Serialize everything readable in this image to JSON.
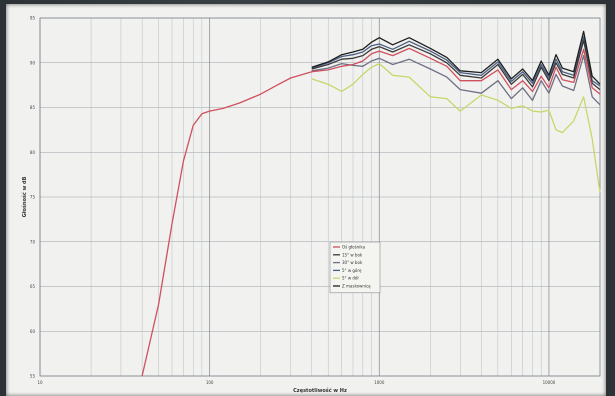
{
  "chart_data": {
    "type": "line",
    "title": "",
    "xlabel": "Częstotliwość w Hz",
    "ylabel": "Głośność w dB",
    "x_scale": "log",
    "xlim": [
      10,
      20000
    ],
    "ylim": [
      55,
      95
    ],
    "grid": true,
    "legend_position": "center-bottom",
    "x_tick_labels": [
      {
        "value": 10,
        "label": "10"
      },
      {
        "value": 100,
        "label": "100"
      },
      {
        "value": 1000,
        "label": "1000"
      },
      {
        "value": 10000,
        "label": "10000"
      }
    ],
    "y_ticks": [
      95,
      90,
      85,
      80,
      75,
      70,
      65,
      60,
      55
    ],
    "series": [
      {
        "name": "Oś głośnika",
        "color": "#d0505f",
        "x": [
          40,
          50,
          60,
          70,
          80,
          90,
          100,
          120,
          150,
          200,
          250,
          300,
          400,
          500,
          600,
          700,
          800,
          900,
          1000,
          1200,
          1500,
          2000,
          2500,
          3000,
          4000,
          5000,
          6000,
          7000,
          8000,
          9000,
          10000,
          11000,
          12000,
          14000,
          16000,
          18000,
          20000
        ],
        "y": [
          55,
          63,
          72,
          79,
          83,
          84.3,
          84.6,
          84.9,
          85.5,
          86.5,
          87.5,
          88.3,
          89,
          89.2,
          89.6,
          89.8,
          90.2,
          91,
          91.3,
          90.8,
          91.6,
          90.5,
          89.6,
          88,
          88,
          89.2,
          87,
          88,
          86.8,
          88.5,
          87.2,
          89.5,
          88.1,
          87.8,
          91.5,
          87.2,
          86.5
        ]
      },
      {
        "name": "15° w bok",
        "color": "#3a3a3a",
        "x": [
          400,
          500,
          600,
          700,
          800,
          900,
          1000,
          1200,
          1500,
          2000,
          2500,
          3000,
          4000,
          5000,
          6000,
          7000,
          8000,
          9000,
          10000,
          11000,
          12000,
          14000,
          16000,
          18000,
          20000
        ],
        "y": [
          89.3,
          89.8,
          90.4,
          90.5,
          90.8,
          91.5,
          91.8,
          91.2,
          92,
          91,
          90,
          88.6,
          88.3,
          89.8,
          87.6,
          88.7,
          87.3,
          89.5,
          88,
          90,
          88.7,
          88.3,
          92.5,
          87.7,
          87
        ]
      },
      {
        "name": "30° w bok",
        "color": "#6f6f86",
        "x": [
          400,
          500,
          600,
          700,
          800,
          900,
          1000,
          1200,
          1500,
          2000,
          2500,
          3000,
          4000,
          5000,
          6000,
          7000,
          8000,
          9000,
          10000,
          11000,
          12000,
          14000,
          16000,
          18000,
          20000
        ],
        "y": [
          89.1,
          89.4,
          89.9,
          89.7,
          89.6,
          90.2,
          90.5,
          89.8,
          90.4,
          89.3,
          88.4,
          87,
          86.6,
          88,
          86,
          87.2,
          85.8,
          88,
          86.6,
          88.7,
          87.4,
          86.9,
          90.8,
          86.2,
          85.3
        ]
      },
      {
        "name": "5° w górę",
        "color": "#4b5f86",
        "x": [
          400,
          500,
          600,
          700,
          800,
          900,
          1000,
          1200,
          1500,
          2000,
          2500,
          3000,
          4000,
          5000,
          6000,
          7000,
          8000,
          9000,
          10000,
          11000,
          12000,
          14000,
          16000,
          18000,
          20000
        ],
        "y": [
          89.4,
          90,
          90.7,
          90.9,
          91.2,
          91.9,
          92.1,
          91.5,
          92.4,
          91.3,
          90.3,
          88.9,
          88.6,
          90.1,
          87.9,
          89,
          87.7,
          89.8,
          88.3,
          90.4,
          89,
          88.6,
          92.9,
          88,
          87.4
        ]
      },
      {
        "name": "5° w dół",
        "color": "#c9d66a",
        "x": [
          400,
          500,
          600,
          700,
          800,
          900,
          1000,
          1200,
          1500,
          2000,
          2500,
          3000,
          4000,
          5000,
          6000,
          7000,
          8000,
          9000,
          10000,
          11000,
          12000,
          14000,
          16000,
          18000,
          20000
        ],
        "y": [
          88.2,
          87.6,
          86.8,
          87.6,
          88.7,
          89.5,
          89.9,
          88.6,
          88.4,
          86.2,
          86,
          84.6,
          86.4,
          85.8,
          84.9,
          85.2,
          84.6,
          84.5,
          84.7,
          82.5,
          82.2,
          83.5,
          86.2,
          81.5,
          75.5
        ]
      },
      {
        "name": "Z maskownicą",
        "color": "#1e1e1e",
        "x": [
          400,
          500,
          600,
          700,
          800,
          900,
          1000,
          1200,
          1500,
          2000,
          2500,
          3000,
          4000,
          5000,
          6000,
          7000,
          8000,
          9000,
          10000,
          11000,
          12000,
          14000,
          16000,
          18000,
          20000
        ],
        "y": [
          89.5,
          90.1,
          90.9,
          91.2,
          91.5,
          92.3,
          92.8,
          92,
          92.8,
          91.6,
          90.6,
          89.1,
          88.9,
          90.4,
          88.2,
          89.3,
          88,
          90.2,
          88.6,
          90.9,
          89.4,
          89,
          93.5,
          88.5,
          87.6
        ]
      }
    ]
  }
}
